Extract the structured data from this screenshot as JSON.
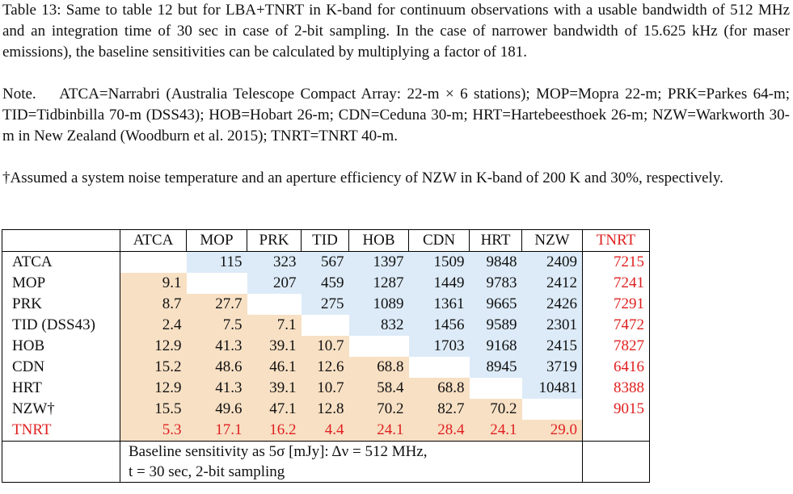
{
  "caption": "Table 13: Same to table 12 but for LBA+TNRT in K-band for continuum observations with a usable bandwidth of 512 MHz and an integration time of 30 sec in case of 2-bit sampling. In the case of narrower bandwidth of 15.625 kHz (for maser emissions), the baseline sensitivities can be calculated by multiplying a factor of 181.",
  "note_label": "Note.",
  "note": "ATCA=Narrabri (Australia Telescope Compact Array: 22-m × 6 stations); MOP=Mopra 22-m; PRK=Parkes 64-m; TID=Tidbinbilla 70-m (DSS43); HOB=Hobart 26-m; CDN=Ceduna 30-m; HRT=Hartebeesthoek 26-m; NZW=Warkworth 30-m in New Zealand (Woodburn et al. 2015); TNRT=TNRT 40-m.",
  "footnote": "†Assumed a system noise temperature and an aperture efficiency of NZW in K-band of 200 K and 30%, respectively.",
  "table": {
    "header": [
      "ATCA",
      "MOP",
      "PRK",
      "TID",
      "HOB",
      "CDN",
      "HRT",
      "NZW",
      "TNRT"
    ],
    "rows": [
      {
        "label": "ATCA",
        "cells": [
          null,
          "115",
          "323",
          "567",
          "1397",
          "1509",
          "9848",
          "2409",
          "7215"
        ]
      },
      {
        "label": "MOP",
        "cells": [
          "9.1",
          null,
          "207",
          "459",
          "1287",
          "1449",
          "9783",
          "2412",
          "7241"
        ]
      },
      {
        "label": "PRK",
        "cells": [
          "8.7",
          "27.7",
          null,
          "275",
          "1089",
          "1361",
          "9665",
          "2426",
          "7291"
        ]
      },
      {
        "label": "TID (DSS43)",
        "cells": [
          "2.4",
          "7.5",
          "7.1",
          null,
          "832",
          "1456",
          "9589",
          "2301",
          "7472"
        ]
      },
      {
        "label": "HOB",
        "cells": [
          "12.9",
          "41.3",
          "39.1",
          "10.7",
          null,
          "1703",
          "9168",
          "2415",
          "7827"
        ]
      },
      {
        "label": "CDN",
        "cells": [
          "15.2",
          "48.6",
          "46.1",
          "12.6",
          "68.8",
          null,
          "8945",
          "3719",
          "6416"
        ]
      },
      {
        "label": "HRT",
        "cells": [
          "12.9",
          "41.3",
          "39.1",
          "10.7",
          "58.4",
          "68.8",
          null,
          "10481",
          "8388"
        ]
      },
      {
        "label": "NZW†",
        "cells": [
          "15.5",
          "49.6",
          "47.1",
          "12.8",
          "70.2",
          "82.7",
          "70.2",
          null,
          "9015"
        ]
      },
      {
        "label": "TNRT",
        "cells": [
          "5.3",
          "17.1",
          "16.2",
          "4.4",
          "24.1",
          "28.4",
          "24.1",
          "29.0",
          null
        ]
      }
    ],
    "footer": [
      "Baseline sensitivity as 5σ [mJy]: Δν = 512 MHz,",
      "t = 30 sec, 2-bit sampling"
    ]
  }
}
